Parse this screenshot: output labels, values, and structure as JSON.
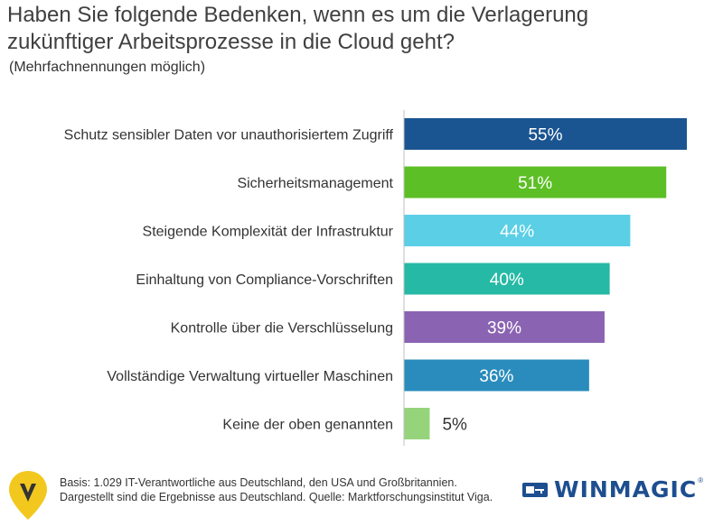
{
  "title": {
    "line1": "Haben Sie folgende Bedenken, wenn es um die Verlagerung",
    "line2": "zukünftiger Arbeitsprozesse in die Cloud geht?"
  },
  "subtitle": "(Mehrfachnennungen möglich)",
  "footer": {
    "line1": "Basis: 1.029 IT-Verantwortliche aus Deutschland, den USA und Großbritannien.",
    "line2": "Dargestellt sind die Ergebnisse aus Deutschland. Quelle: Marktforschungsinstitut Viga."
  },
  "brand": {
    "name": "WINMAGIC",
    "reg": "®",
    "color": "#1d4e8f",
    "left_logo_color": "#f2c81f"
  },
  "chart_data": {
    "type": "bar",
    "orientation": "horizontal",
    "title": "Haben Sie folgende Bedenken, wenn es um die Verlagerung zukünftiger Arbeitsprozesse in die Cloud geht?",
    "xlabel": "",
    "ylabel": "",
    "xlim": [
      0,
      55
    ],
    "grid": false,
    "legend": "none",
    "categories": [
      "Schutz sensibler Daten vor unauthorisiertem Zugriff",
      "Sicherheitsmanagement",
      "Steigende Komplexität der Infrastruktur",
      "Einhaltung von Compliance-Vorschriften",
      "Kontrolle über die Verschlüsselung",
      "Vollständige Verwaltung virtueller Maschinen",
      "Keine der oben genannten"
    ],
    "values": [
      55,
      51,
      44,
      40,
      39,
      36,
      5
    ],
    "value_labels": [
      "55%",
      "51%",
      "44%",
      "40%",
      "39%",
      "36%",
      "5%"
    ],
    "colors": [
      "#1b5591",
      "#5cbf26",
      "#5acfe6",
      "#26b9a5",
      "#8a63b2",
      "#2a8cbc",
      "#96d47c"
    ]
  }
}
